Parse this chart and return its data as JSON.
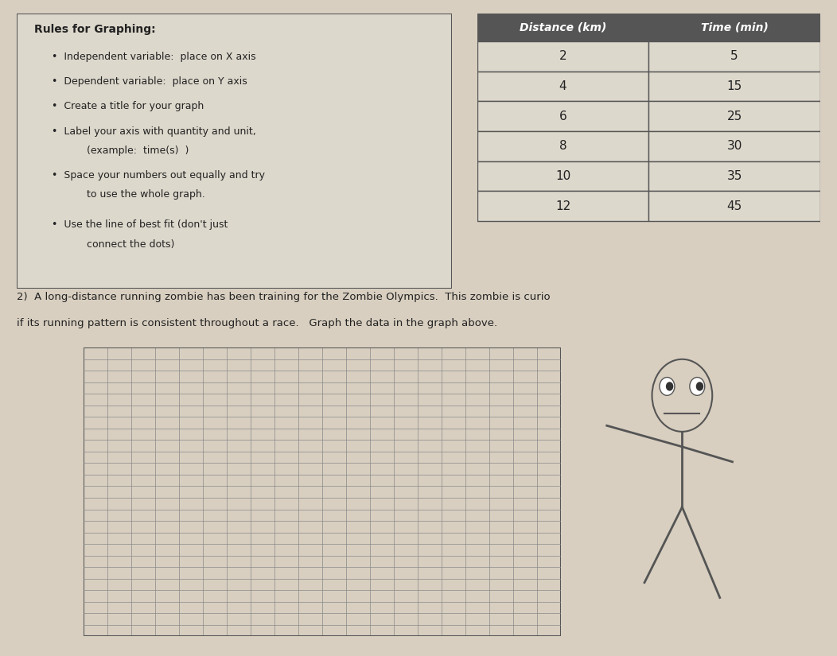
{
  "bg_color": "#d8cfc0",
  "page_color": "#e8e3d8",
  "rules_title": "Rules for Graphing:",
  "rules": [
    "Independent variable:  place on X axis",
    "Dependent variable:  place on Y axis",
    "Create a title for your graph",
    "Label your axis with quantity and unit,",
    "(example:  time(s)  )",
    "Space your numbers out equally and try",
    "to use the whole graph.",
    "Use the line of best fit (don't just",
    "connect the dots)"
  ],
  "rule_bullets": [
    true,
    true,
    true,
    true,
    false,
    true,
    false,
    true,
    false
  ],
  "table_header": [
    "Distance (km)",
    "Time (min)"
  ],
  "table_data": [
    [
      "2",
      "5"
    ],
    [
      "4",
      "15"
    ],
    [
      "6",
      "25"
    ],
    [
      "8",
      "30"
    ],
    [
      "10",
      "35"
    ],
    [
      "12",
      "45"
    ]
  ],
  "question_text_1": "2)  A long-distance running zombie has been training for the Zombie Olympics.  This zombie is curio",
  "question_text_2": "if its running pattern is consistent throughout a race.   Graph the data in the graph above.",
  "grid_cols": 20,
  "grid_rows": 25,
  "grid_line_color": "#888888",
  "grid_bg": "#f0ece0",
  "border_color": "#555555",
  "text_color": "#222222",
  "header_bg": "#555555",
  "header_text_color": "#ffffff",
  "table_row_bg": "#ddd8cc",
  "rules_box_bg": "#ddd8cc"
}
